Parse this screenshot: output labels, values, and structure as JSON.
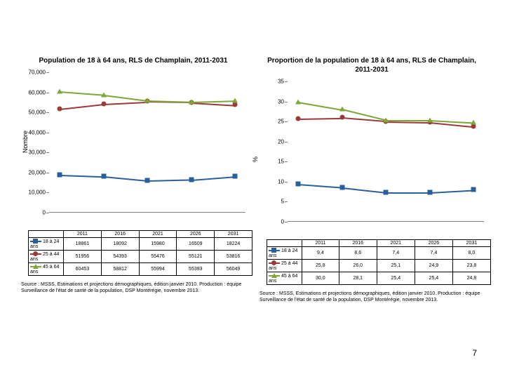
{
  "page_number": "7",
  "series_colors": {
    "s1": "#2a6099",
    "s2": "#9c3a3a",
    "s3": "#7ea638"
  },
  "categories": [
    "2011",
    "2016",
    "2021",
    "2026",
    "2031"
  ],
  "left": {
    "title": "Population de 18 à 64 ans,\nRLS de Champlain, 2011-2031",
    "y_title": "Nombre",
    "y_ticks": [
      "0",
      "10,000",
      "20,000",
      "30,000",
      "40,000",
      "50,000",
      "60,000",
      "70,000"
    ],
    "y_max": 70000,
    "series": [
      {
        "name": "18 à 24 ans",
        "type": "square",
        "color": "s1",
        "values": [
          18861,
          18092,
          15980,
          16509,
          18224
        ]
      },
      {
        "name": "25 à 44 ans",
        "type": "circle",
        "color": "s2",
        "values": [
          51956,
          54393,
          55476,
          55121,
          53816
        ]
      },
      {
        "name": "45 à 64 ans",
        "type": "triangle",
        "color": "s3",
        "values": [
          60453,
          58812,
          55994,
          55393,
          56049
        ]
      }
    ],
    "source": "Source : MSSS, Estimations et projections démographiques, édition janvier 2010.\nProduction : équipe Surveillance de l'état de santé de la population, DSP Montérégie, novembre 2013."
  },
  "right": {
    "title": "Proportion de la population de 18 à 64 ans,\nRLS de Champlain, 2011-2031",
    "y_title": "%",
    "y_ticks": [
      "0",
      "5",
      "10",
      "15",
      "20",
      "25",
      "30",
      "35"
    ],
    "y_max": 35,
    "series": [
      {
        "name": "18 à 24 ans",
        "type": "square",
        "color": "s1",
        "values": [
          9.4,
          8.6,
          7.4,
          7.4,
          8.0
        ]
      },
      {
        "name": "25 à 44 ans",
        "type": "circle",
        "color": "s2",
        "values": [
          25.8,
          26.0,
          25.1,
          24.9,
          23.8
        ]
      },
      {
        "name": "45 à 64 ans",
        "type": "triangle",
        "color": "s3",
        "values": [
          30.0,
          28.1,
          25.4,
          25.4,
          24.8
        ]
      }
    ],
    "source": "Source : MSSS, Estimations et projections démographiques, édition janvier 2010.\nProduction : équipe Surveillance de l'état de santé de la population, DSP Montérégie, novembre 2013."
  }
}
